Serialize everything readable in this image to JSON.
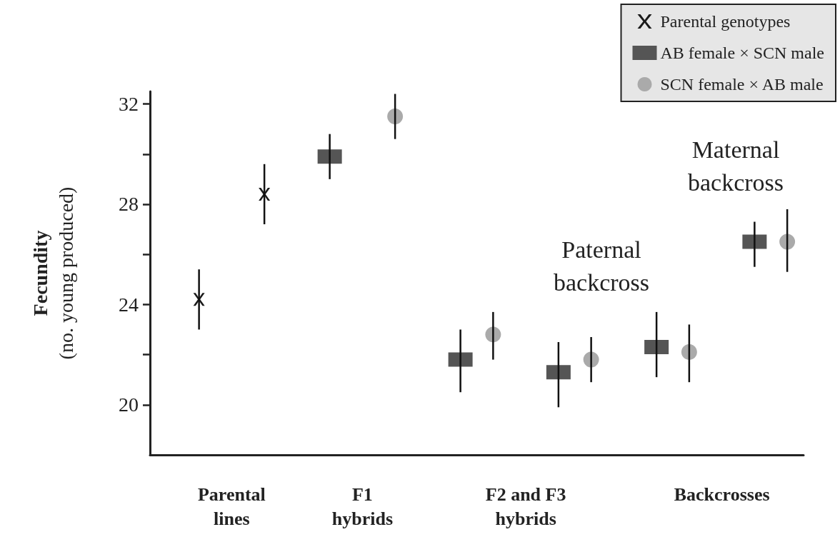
{
  "chart_data": {
    "type": "scatter",
    "ylabel": "Fecundity\n(no. young produced)",
    "categories": [
      null,
      null,
      "Parental\nlines",
      null,
      null,
      null,
      "F1\nhybrids",
      null,
      null,
      null,
      null,
      "F2 and F3\nhybrids",
      null,
      null,
      null,
      null,
      null,
      "Backcrosses",
      null,
      null
    ],
    "ylim": [
      18,
      32.5
    ],
    "yticks": [
      20,
      {
        "value": 22,
        "label": null
      },
      24,
      {
        "value": 26,
        "label": null
      },
      28,
      {
        "value": 30,
        "label": null
      },
      32
    ],
    "series": [
      {
        "name": "Parental genotypes",
        "color": "#1a1a1a",
        "marker": "cross",
        "values": [
          null,
          24.2,
          null,
          28.4,
          null,
          null,
          null,
          null,
          null,
          null,
          null,
          null,
          null,
          null,
          null,
          null,
          null,
          null,
          null,
          null
        ],
        "errors": [
          null,
          [
            23.0,
            25.4
          ],
          null,
          [
            27.2,
            29.6
          ],
          null,
          null,
          null,
          null,
          null,
          null,
          null,
          null,
          null,
          null,
          null,
          null,
          null,
          null,
          null,
          null
        ]
      },
      {
        "name": "AB female × SCN male",
        "color": "#555555",
        "marker": "square",
        "values": [
          null,
          null,
          null,
          null,
          null,
          29.9,
          null,
          null,
          null,
          21.8,
          null,
          null,
          21.3,
          null,
          null,
          22.3,
          null,
          null,
          26.5,
          null
        ],
        "errors": [
          null,
          null,
          null,
          null,
          null,
          [
            29.0,
            30.8
          ],
          null,
          null,
          null,
          [
            20.5,
            23.0
          ],
          null,
          null,
          [
            19.9,
            22.5
          ],
          null,
          null,
          [
            21.1,
            23.7
          ],
          null,
          null,
          [
            25.5,
            27.3
          ],
          null
        ]
      },
      {
        "name": "SCN female × AB male",
        "color": "#aaaaaa",
        "marker": "circle",
        "values": [
          null,
          null,
          null,
          null,
          null,
          null,
          null,
          31.5,
          null,
          null,
          22.8,
          null,
          null,
          21.8,
          null,
          null,
          22.1,
          null,
          null,
          26.5
        ],
        "errors": [
          null,
          null,
          null,
          null,
          null,
          null,
          null,
          [
            30.6,
            32.4
          ],
          null,
          null,
          [
            21.8,
            23.7
          ],
          null,
          null,
          [
            20.9,
            22.7
          ],
          null,
          null,
          [
            20.9,
            23.2
          ],
          null,
          null,
          [
            25.3,
            27.8
          ]
        ]
      }
    ],
    "annotations": [
      "Paternal\nbackcross",
      "Maternal\nbackcross"
    ],
    "legend": "top right",
    "grid": false
  }
}
